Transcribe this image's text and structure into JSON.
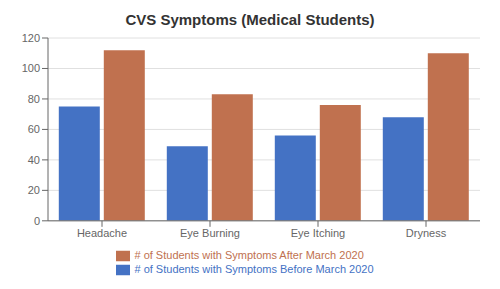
{
  "chart_data": {
    "type": "bar",
    "title": "CVS Symptoms (Medical Students)",
    "categories": [
      "Headache",
      "Eye Burning",
      "Eye Itching",
      "Dryness"
    ],
    "series": [
      {
        "name": "# of Students with Symptoms Before March 2020",
        "color": "#4472C4",
        "values": [
          75,
          49,
          56,
          68
        ]
      },
      {
        "name": "# of Students with Symptoms After March 2020",
        "color": "#C0714F",
        "values": [
          112,
          83,
          76,
          110
        ]
      }
    ],
    "ylim": [
      0,
      120
    ],
    "yticks": [
      0,
      20,
      40,
      60,
      80,
      100,
      120
    ],
    "grid": true,
    "legend": "bottom"
  }
}
